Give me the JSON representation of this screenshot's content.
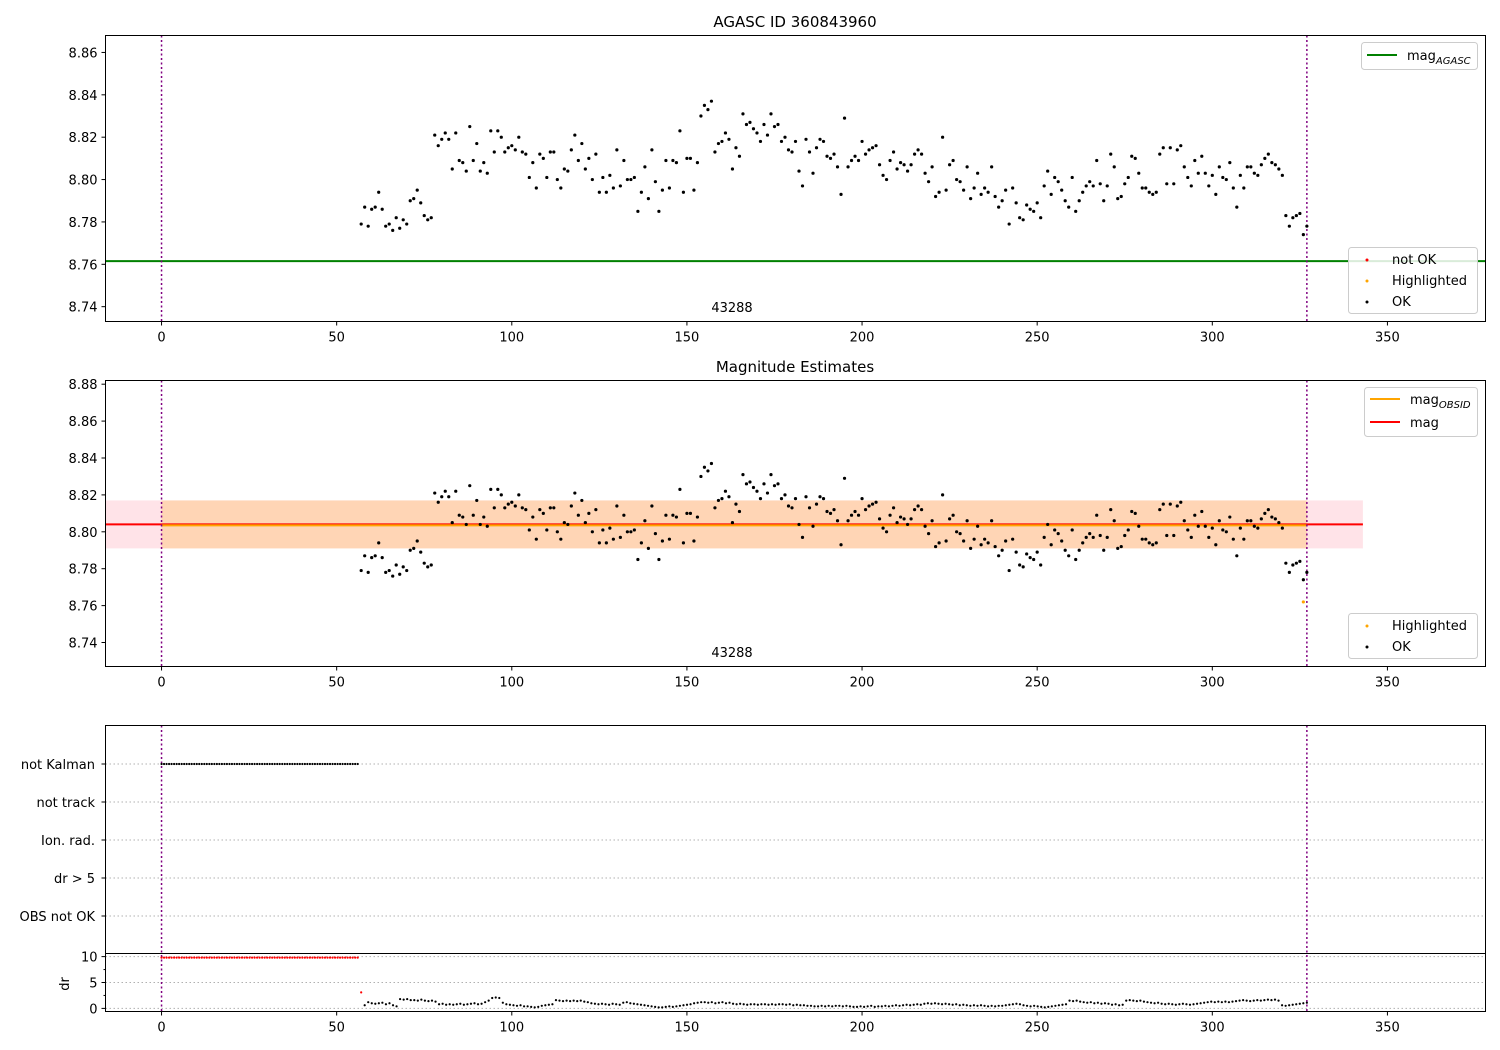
{
  "chart_data": [
    {
      "type": "scatter",
      "title": "AGASC ID 360843960",
      "annotation": "43288",
      "xlim": [
        -16,
        378
      ],
      "ylim": [
        8.733,
        8.868
      ],
      "xticks": [
        0,
        50,
        100,
        150,
        200,
        250,
        300,
        350
      ],
      "yticks": [
        8.74,
        8.76,
        8.78,
        8.8,
        8.82,
        8.84,
        8.86
      ],
      "ytick_labels": [
        "8.74",
        "8.76",
        "8.78",
        "8.80",
        "8.82",
        "8.84",
        "8.86"
      ],
      "vlines": [
        0,
        327
      ],
      "hlines": [
        {
          "y": 8.7615,
          "color": "#008000"
        }
      ],
      "legend_upper": [
        {
          "label": "mag",
          "sub": "AGASC",
          "color": "#008000"
        }
      ],
      "legend_lower": [
        {
          "label": "not OK",
          "color": "#ff0000"
        },
        {
          "label": "Highlighted",
          "color": "#ffa500"
        },
        {
          "label": "OK",
          "color": "#000000"
        }
      ],
      "series": [
        {
          "name": "OK",
          "color": "#000000",
          "x_start": 57,
          "x_end": 327,
          "y_ref": "mag_ok"
        }
      ]
    },
    {
      "type": "scatter",
      "title": "Magnitude Estimates",
      "annotation": "43288",
      "xlim": [
        -16,
        378
      ],
      "ylim": [
        8.727,
        8.882
      ],
      "xticks": [
        0,
        50,
        100,
        150,
        200,
        250,
        300,
        350
      ],
      "yticks": [
        8.74,
        8.76,
        8.78,
        8.8,
        8.82,
        8.84,
        8.86,
        8.88
      ],
      "ytick_labels": [
        "8.74",
        "8.76",
        "8.78",
        "8.80",
        "8.82",
        "8.84",
        "8.86",
        "8.88"
      ],
      "vlines": [
        0,
        327
      ],
      "bands": [
        {
          "x0": -16,
          "x1": 343,
          "y0": 8.791,
          "y1": 8.817,
          "color": "#ffc0cb",
          "opacity": 0.45
        },
        {
          "x0": 0,
          "x1": 327,
          "y0": 8.791,
          "y1": 8.817,
          "color": "#ffa500",
          "opacity": 0.22
        }
      ],
      "lines": [
        {
          "x0": -16,
          "x1": 343,
          "y": 8.804,
          "color": "#ff0000"
        },
        {
          "x0": 0,
          "x1": 327,
          "y": 8.8035,
          "color": "#ffa500"
        }
      ],
      "highlighted_points": [
        {
          "x": 326,
          "y": 8.762
        }
      ],
      "legend_upper": [
        {
          "label": "mag",
          "sub": "OBSID",
          "color": "#ffa500"
        },
        {
          "label": "mag",
          "sub": "",
          "color": "#ff0000"
        }
      ],
      "legend_lower": [
        {
          "label": "Highlighted",
          "color": "#ffa500"
        },
        {
          "label": "OK",
          "color": "#000000"
        }
      ],
      "series": [
        {
          "name": "OK",
          "color": "#000000",
          "x_start": 57,
          "x_end": 327,
          "y_ref": "mag_ok"
        }
      ]
    },
    {
      "type": "scatter",
      "xlim": [
        -16,
        378
      ],
      "xticks": [
        0,
        50,
        100,
        150,
        200,
        250,
        300,
        350
      ],
      "vlines": [
        0,
        327
      ],
      "flag_rows": [
        "not Kalman",
        "not track",
        "Ion. rad.",
        "dr > 5",
        "OBS not OK"
      ],
      "flag_ranges": [
        {
          "row": "not Kalman",
          "x_start": 0,
          "x_end": 56
        }
      ],
      "dr_panel": {
        "ylabel": "dr",
        "ylim": [
          -0.6,
          10.6
        ],
        "yticks": [
          0,
          5,
          10
        ],
        "ytick_labels": [
          "0",
          "5",
          "10"
        ],
        "grid": [
          0,
          5,
          10
        ],
        "not_ok": {
          "x_start": 0,
          "x_end": 56,
          "y": 9.8,
          "extra": [
            {
              "x": 57,
              "y": 3.1
            }
          ]
        },
        "ok_ref": "dr_ok"
      }
    }
  ],
  "mag_ok": [
    8.779,
    8.787,
    8.778,
    8.786,
    8.787,
    8.794,
    8.786,
    8.778,
    8.779,
    8.776,
    8.782,
    8.777,
    8.781,
    8.779,
    8.79,
    8.791,
    8.795,
    8.789,
    8.783,
    8.781,
    8.782,
    8.821,
    8.816,
    8.819,
    8.822,
    8.819,
    8.805,
    8.822,
    8.809,
    8.808,
    8.804,
    8.825,
    8.809,
    8.817,
    8.804,
    8.808,
    8.803,
    8.823,
    8.813,
    8.823,
    8.82,
    8.813,
    8.815,
    8.816,
    8.814,
    8.82,
    8.813,
    8.812,
    8.801,
    8.808,
    8.796,
    8.812,
    8.81,
    8.801,
    8.813,
    8.813,
    8.8,
    8.796,
    8.805,
    8.804,
    8.814,
    8.821,
    8.809,
    8.817,
    8.805,
    8.81,
    8.8,
    8.812,
    8.794,
    8.801,
    8.794,
    8.802,
    8.796,
    8.814,
    8.797,
    8.809,
    8.8,
    8.8,
    8.801,
    8.785,
    8.794,
    8.806,
    8.791,
    8.814,
    8.799,
    8.785,
    8.795,
    8.809,
    8.796,
    8.809,
    8.808,
    8.823,
    8.794,
    8.81,
    8.81,
    8.795,
    8.808,
    8.83,
    8.835,
    8.833,
    8.837,
    8.813,
    8.817,
    8.818,
    8.822,
    8.819,
    8.805,
    8.815,
    8.811,
    8.831,
    8.826,
    8.827,
    8.824,
    8.822,
    8.818,
    8.826,
    8.821,
    8.831,
    8.825,
    8.826,
    8.818,
    8.82,
    8.814,
    8.813,
    8.818,
    8.804,
    8.797,
    8.819,
    8.813,
    8.803,
    8.815,
    8.819,
    8.818,
    8.811,
    8.81,
    8.812,
    8.806,
    8.793,
    8.829,
    8.806,
    8.809,
    8.811,
    8.809,
    8.818,
    8.812,
    8.814,
    8.815,
    8.816,
    8.807,
    8.802,
    8.8,
    8.809,
    8.813,
    8.805,
    8.808,
    8.807,
    8.804,
    8.807,
    8.812,
    8.814,
    8.812,
    8.803,
    8.799,
    8.806,
    8.792,
    8.794,
    8.82,
    8.795,
    8.807,
    8.809,
    8.8,
    8.799,
    8.795,
    8.806,
    8.791,
    8.796,
    8.803,
    8.793,
    8.796,
    8.794,
    8.806,
    8.792,
    8.787,
    8.79,
    8.795,
    8.779,
    8.796,
    8.789,
    8.782,
    8.781,
    8.788,
    8.786,
    8.785,
    8.789,
    8.782,
    8.797,
    8.804,
    8.793,
    8.801,
    8.799,
    8.795,
    8.79,
    8.787,
    8.801,
    8.785,
    8.79,
    8.794,
    8.797,
    8.799,
    8.797,
    8.809,
    8.798,
    8.79,
    8.797,
    8.812,
    8.806,
    8.791,
    8.792,
    8.798,
    8.801,
    8.811,
    8.81,
    8.803,
    8.796,
    8.796,
    8.794,
    8.793,
    8.794,
    8.812,
    8.815,
    8.798,
    8.815,
    8.798,
    8.814,
    8.816,
    8.806,
    8.801,
    8.797,
    8.809,
    8.803,
    8.811,
    8.803,
    8.797,
    8.802,
    8.793,
    8.806,
    8.801,
    8.8,
    8.808,
    8.796,
    8.787,
    8.802,
    8.796,
    8.806,
    8.806,
    8.803,
    8.802,
    8.807,
    8.81,
    8.812,
    8.808,
    8.807,
    8.805,
    8.802,
    8.783,
    8.778,
    8.782,
    8.783,
    8.784,
    8.774,
    8.778
  ],
  "dr_ok": [
    0.6,
    1.2,
    1.0,
    0.9,
    1.0,
    1.1,
    0.8,
    1.0,
    0.6,
    0.4,
    1.8,
    1.7,
    1.8,
    1.6,
    1.6,
    1.5,
    1.7,
    1.5,
    1.4,
    1.5,
    1.3,
    0.8,
    0.9,
    0.7,
    0.8,
    0.7,
    0.8,
    0.9,
    0.7,
    0.8,
    0.9,
    1.0,
    0.8,
    0.9,
    1.2,
    1.5,
    2.0,
    2.1,
    2.0,
    1.1,
    0.8,
    0.7,
    0.6,
    0.5,
    0.6,
    0.4,
    0.4,
    0.3,
    0.2,
    0.3,
    0.5,
    0.6,
    0.7,
    0.8,
    1.6,
    1.5,
    1.4,
    1.5,
    1.4,
    1.5,
    1.4,
    1.5,
    1.3,
    1.2,
    1.0,
    0.9,
    0.8,
    0.9,
    0.8,
    0.7,
    0.9,
    0.8,
    0.7,
    1.1,
    1.2,
    1.0,
    0.9,
    0.8,
    0.7,
    0.6,
    0.5,
    0.4,
    0.3,
    0.2,
    0.2,
    0.3,
    0.4,
    0.3,
    0.4,
    0.5,
    0.6,
    0.7,
    0.8,
    1.0,
    1.1,
    1.2,
    1.2,
    1.1,
    1.2,
    1.0,
    1.1,
    1.2,
    1.0,
    1.1,
    0.9,
    0.8,
    0.9,
    0.8,
    0.7,
    0.8,
    0.8,
    0.7,
    0.8,
    0.8,
    0.7,
    0.8,
    0.7,
    0.8,
    0.8,
    0.7,
    0.8,
    0.6,
    0.7,
    0.6,
    0.6,
    0.5,
    0.5,
    0.4,
    0.4,
    0.5,
    0.4,
    0.5,
    0.4,
    0.5,
    0.5,
    0.4,
    0.5,
    0.4,
    0.3,
    0.3,
    0.4,
    0.3,
    0.4,
    0.5,
    0.3,
    0.4,
    0.4,
    0.5,
    0.4,
    0.5,
    0.6,
    0.5,
    0.6,
    0.7,
    0.6,
    0.7,
    0.8,
    0.7,
    0.9,
    1.0,
    0.9,
    1.0,
    0.9,
    0.8,
    0.9,
    0.8,
    0.7,
    0.8,
    0.6,
    0.7,
    0.6,
    0.5,
    0.6,
    0.5,
    0.6,
    0.5,
    0.4,
    0.5,
    0.4,
    0.5,
    0.5,
    0.6,
    0.7,
    0.8,
    0.9,
    0.8,
    0.6,
    0.5,
    0.4,
    0.5,
    0.4,
    0.3,
    0.2,
    0.3,
    0.4,
    0.5,
    0.6,
    0.7,
    0.8,
    1.5,
    1.4,
    1.5,
    1.3,
    1.2,
    1.1,
    1.2,
    1.0,
    1.1,
    0.9,
    1.0,
    0.9,
    0.7,
    0.8,
    0.6,
    0.7,
    1.5,
    1.6,
    1.5,
    1.4,
    1.5,
    1.3,
    1.2,
    1.1,
    1.0,
    1.1,
    0.9,
    0.8,
    0.9,
    0.8,
    0.7,
    0.8,
    0.9,
    0.8,
    0.7,
    0.8,
    0.9,
    1.0,
    1.1,
    1.2,
    1.3,
    1.2,
    1.3,
    1.2,
    1.3,
    1.2,
    1.3,
    1.4,
    1.5,
    1.6,
    1.5,
    1.4,
    1.5,
    1.6,
    1.5,
    1.6,
    1.7,
    1.6,
    1.7,
    1.5,
    0.6,
    0.5,
    0.6,
    0.7,
    0.8,
    0.9,
    1.0,
    1.1
  ]
}
